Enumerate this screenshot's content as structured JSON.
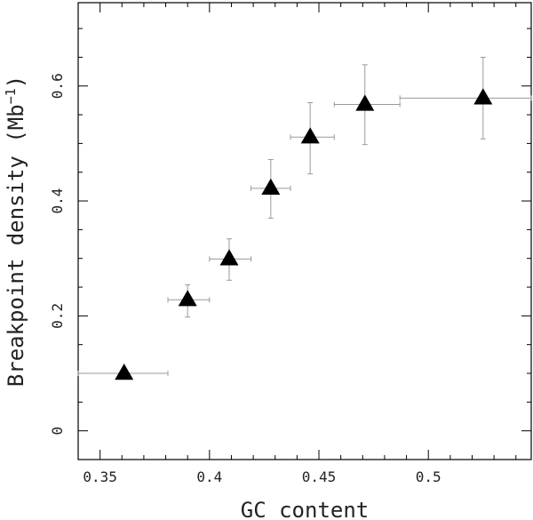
{
  "chart_data": {
    "type": "scatter",
    "xlabel": "GC content",
    "ylabel_main": "Breakpoint density (Mb",
    "ylabel_sup": "−1",
    "ylabel_close": ")",
    "xlim": [
      0.34,
      0.547
    ],
    "ylim": [
      -0.05,
      0.745
    ],
    "xticks": [
      0.35,
      0.4,
      0.45,
      0.5
    ],
    "xtick_labels": [
      "0.35",
      "0.4",
      "0.45",
      "0.5"
    ],
    "yticks": [
      0,
      0.2,
      0.4,
      0.6
    ],
    "ytick_labels": [
      "0",
      "0.2",
      "0.4",
      "0.6"
    ],
    "points": [
      {
        "x": 0.361,
        "y": 0.1,
        "x_lo": 0.34,
        "x_hi": 0.381,
        "y_lo": 0.095,
        "y_hi": 0.105
      },
      {
        "x": 0.39,
        "y": 0.228,
        "x_lo": 0.381,
        "x_hi": 0.4,
        "y_lo": 0.198,
        "y_hi": 0.254
      },
      {
        "x": 0.409,
        "y": 0.299,
        "x_lo": 0.4,
        "x_hi": 0.419,
        "y_lo": 0.262,
        "y_hi": 0.334
      },
      {
        "x": 0.428,
        "y": 0.422,
        "x_lo": 0.419,
        "x_hi": 0.437,
        "y_lo": 0.37,
        "y_hi": 0.472
      },
      {
        "x": 0.446,
        "y": 0.511,
        "x_lo": 0.437,
        "x_hi": 0.457,
        "y_lo": 0.447,
        "y_hi": 0.571
      },
      {
        "x": 0.471,
        "y": 0.568,
        "x_lo": 0.457,
        "x_hi": 0.487,
        "y_lo": 0.498,
        "y_hi": 0.637
      },
      {
        "x": 0.525,
        "y": 0.579,
        "x_lo": 0.487,
        "x_hi": 0.547,
        "y_lo": 0.508,
        "y_hi": 0.65
      }
    ],
    "marker": "filled-triangle",
    "marker_color": "#000000",
    "errorbar_color": "#9a9a9a",
    "grid": false,
    "legend": "none"
  }
}
